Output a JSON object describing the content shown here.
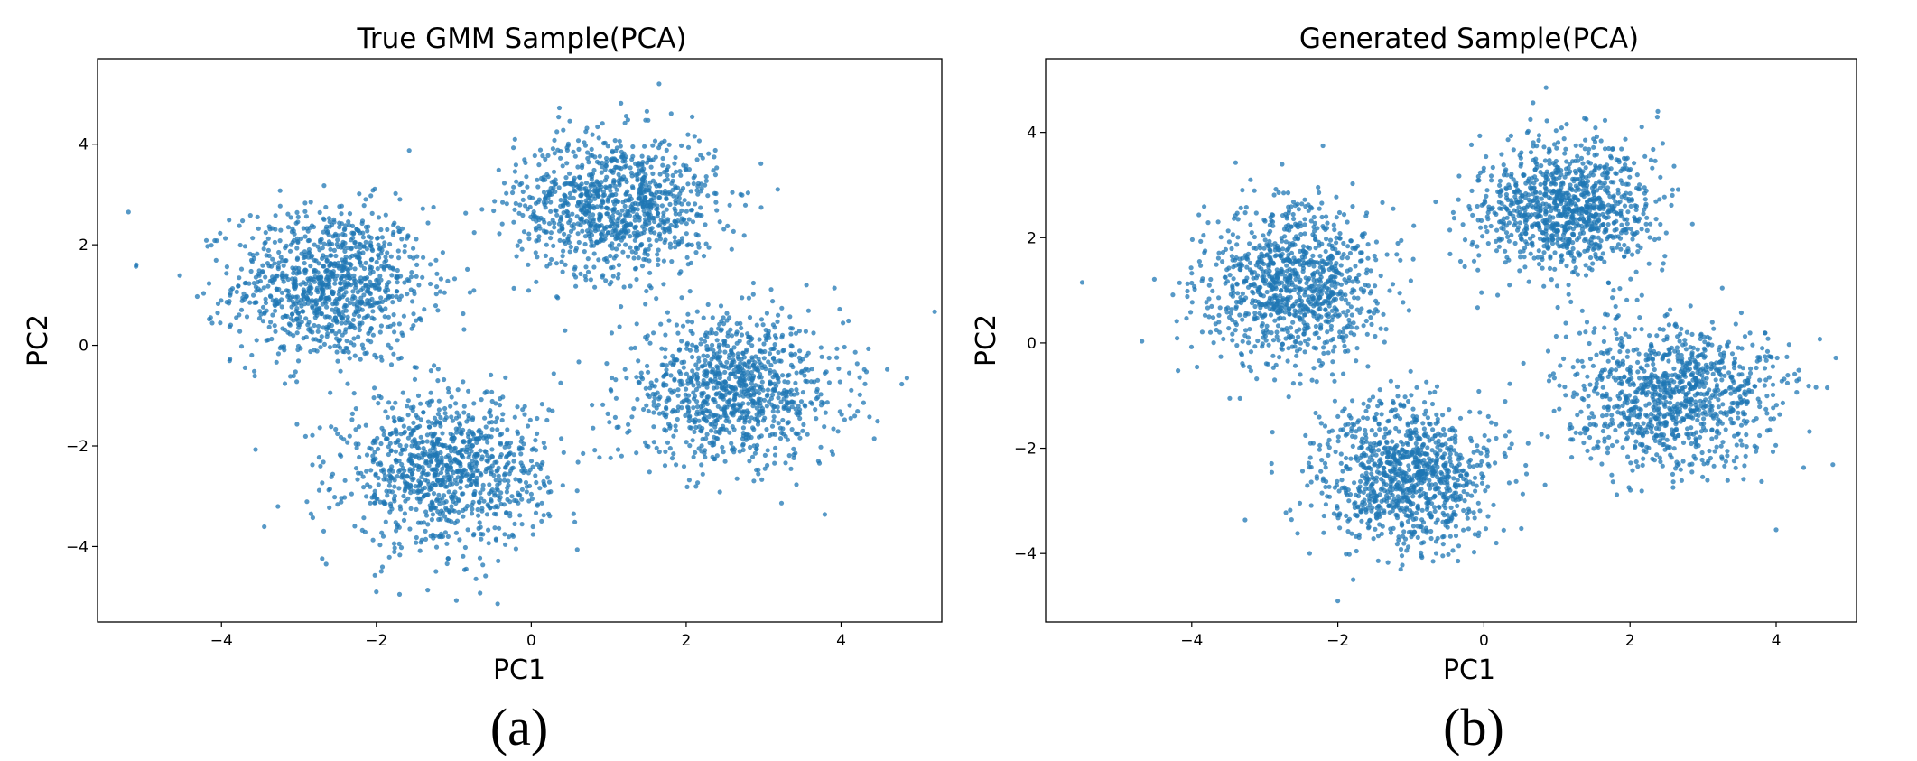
{
  "chart_data": [
    {
      "type": "scatter",
      "panel_label": "(a)",
      "title": "True GMM Sample(PCA)",
      "xlabel": "PC1",
      "ylabel": "PC2",
      "xlim": [
        -5.6,
        5.3
      ],
      "ylim": [
        -5.5,
        5.7
      ],
      "xticks": [
        -4,
        -2,
        0,
        2,
        4
      ],
      "yticks": [
        -4,
        -2,
        0,
        2,
        4
      ],
      "grid": false,
      "legend": "none",
      "marker_color": "#1f77b4",
      "series": [
        {
          "clusters": [
            {
              "center": [
                -2.6,
                1.2
              ],
              "std": [
                0.62,
                0.78
              ],
              "n": 1000
            },
            {
              "center": [
                1.1,
                2.8
              ],
              "std": [
                0.65,
                0.7
              ],
              "n": 1000
            },
            {
              "center": [
                2.6,
                -0.9
              ],
              "std": [
                0.72,
                0.72
              ],
              "n": 1000
            },
            {
              "center": [
                -1.1,
                -2.5
              ],
              "std": [
                0.65,
                0.75
              ],
              "n": 1000
            }
          ],
          "extra_points": [
            [
              -5.2,
              2.65
            ],
            [
              -5.1,
              1.6
            ],
            [
              4.85,
              -0.65
            ],
            [
              1.65,
              5.2
            ],
            [
              -1.7,
              -4.95
            ],
            [
              -2.0,
              -4.9
            ]
          ]
        }
      ]
    },
    {
      "type": "scatter",
      "panel_label": "(b)",
      "title": "Generated Sample(PCA)",
      "xlabel": "PC1",
      "ylabel": "PC2",
      "xlim": [
        -6.0,
        5.1
      ],
      "ylim": [
        -5.3,
        5.4
      ],
      "xticks": [
        -4,
        -2,
        0,
        2,
        4
      ],
      "yticks": [
        -4,
        -2,
        0,
        2,
        4
      ],
      "grid": false,
      "legend": "none",
      "marker_color": "#1f77b4",
      "series": [
        {
          "clusters": [
            {
              "center": [
                -2.6,
                1.1
              ],
              "std": [
                0.62,
                0.75
              ],
              "n": 1000
            },
            {
              "center": [
                1.1,
                2.6
              ],
              "std": [
                0.6,
                0.65
              ],
              "n": 1000
            },
            {
              "center": [
                2.6,
                -1.0
              ],
              "std": [
                0.72,
                0.68
              ],
              "n": 1000
            },
            {
              "center": [
                -1.1,
                -2.5
              ],
              "std": [
                0.6,
                0.7
              ],
              "n": 1000
            }
          ],
          "extra_points": [
            [
              -5.5,
              1.15
            ],
            [
              4.7,
              -0.85
            ],
            [
              0.85,
              4.85
            ],
            [
              -2.0,
              -4.9
            ],
            [
              4.0,
              -3.55
            ]
          ]
        }
      ]
    }
  ]
}
